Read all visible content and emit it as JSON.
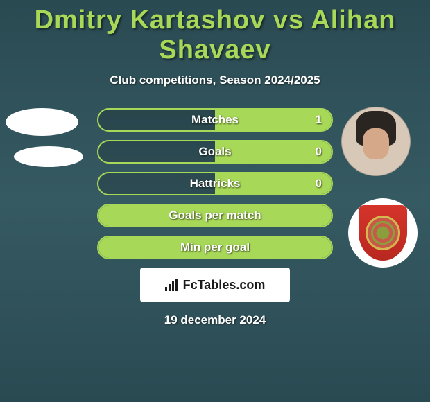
{
  "title": "Dmitry Kartashov vs Alihan Shavaev",
  "subtitle": "Club competitions, Season 2024/2025",
  "colors": {
    "accent": "#a8d858",
    "background_top": "#2a4a52",
    "text": "#ffffff",
    "badge_red": "#d4342a"
  },
  "stats": [
    {
      "label": "Matches",
      "value_right": "1",
      "fill_left_pct": 0,
      "fill_right_pct": 50
    },
    {
      "label": "Goals",
      "value_right": "0",
      "fill_left_pct": 0,
      "fill_right_pct": 50
    },
    {
      "label": "Hattricks",
      "value_right": "0",
      "fill_left_pct": 0,
      "fill_right_pct": 50
    },
    {
      "label": "Goals per match",
      "value_right": "",
      "fill_left_pct": 50,
      "fill_right_pct": 50
    },
    {
      "label": "Min per goal",
      "value_right": "",
      "fill_left_pct": 50,
      "fill_right_pct": 50
    }
  ],
  "logo_text": "FcTables.com",
  "date": "19 december 2024"
}
